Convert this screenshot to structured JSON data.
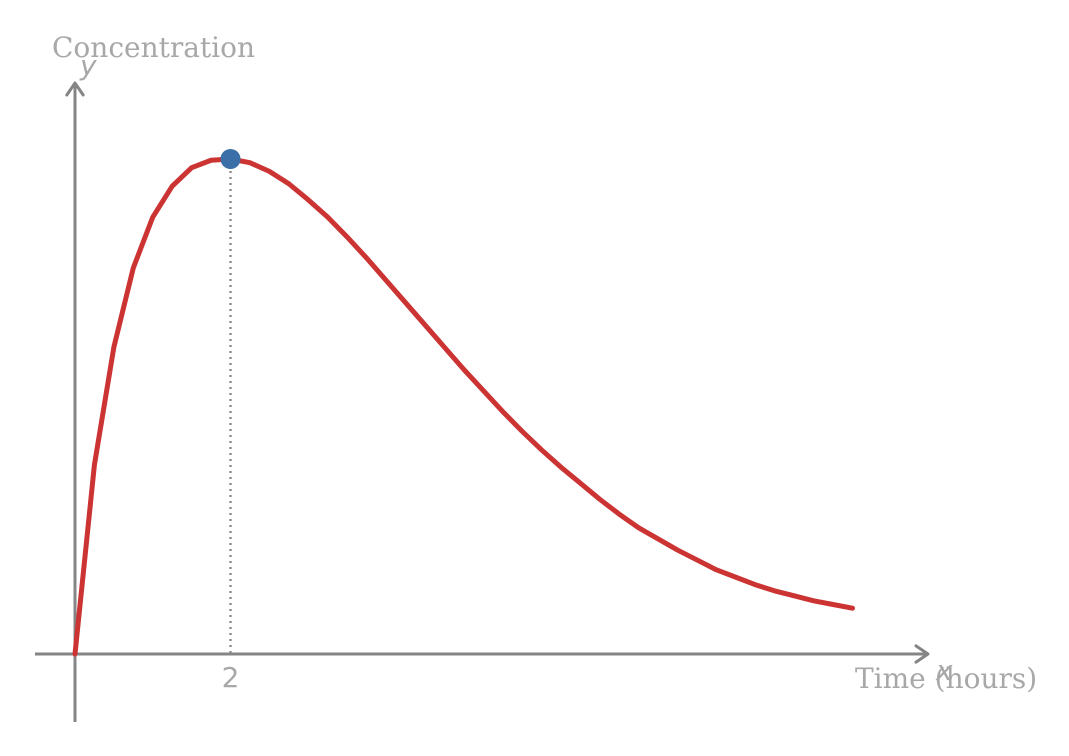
{
  "chart_data": {
    "type": "line",
    "title": "",
    "xlabel": "Time (hours)",
    "ylabel": "Concentration",
    "x_axis_variable": "x",
    "y_axis_variable": "y",
    "xlim": [
      -0.5,
      11
    ],
    "ylim": [
      -0.5,
      4.7
    ],
    "x_ticks": [
      2
    ],
    "x_tick_labels": [
      "2"
    ],
    "grid": false,
    "series": [
      {
        "color": "#cc3333",
        "x": [
          0,
          0.25,
          0.5,
          0.75,
          1,
          1.25,
          1.5,
          1.75,
          2,
          2.25,
          2.5,
          2.75,
          3,
          3.25,
          3.5,
          3.75,
          4,
          4.25,
          4.5,
          4.75,
          5,
          5.25,
          5.5,
          5.75,
          6,
          6.25,
          6.5,
          6.75,
          7,
          7.25,
          7.5,
          7.75,
          8,
          8.25,
          8.5,
          8.75,
          9,
          9.25,
          9.5,
          9.75,
          10
        ],
        "y": [
          0,
          1.53,
          2.48,
          3.12,
          3.53,
          3.78,
          3.93,
          3.99,
          4,
          3.97,
          3.9,
          3.8,
          3.67,
          3.53,
          3.37,
          3.2,
          3.02,
          2.84,
          2.66,
          2.48,
          2.3,
          2.13,
          1.96,
          1.8,
          1.65,
          1.51,
          1.38,
          1.25,
          1.13,
          1.02,
          0.93,
          0.84,
          0.76,
          0.68,
          0.62,
          0.56,
          0.51,
          0.47,
          0.43,
          0.4,
          0.37
        ]
      }
    ],
    "highlight_point": {
      "x": 2,
      "y": 4,
      "color": "#3b6fa8"
    }
  }
}
